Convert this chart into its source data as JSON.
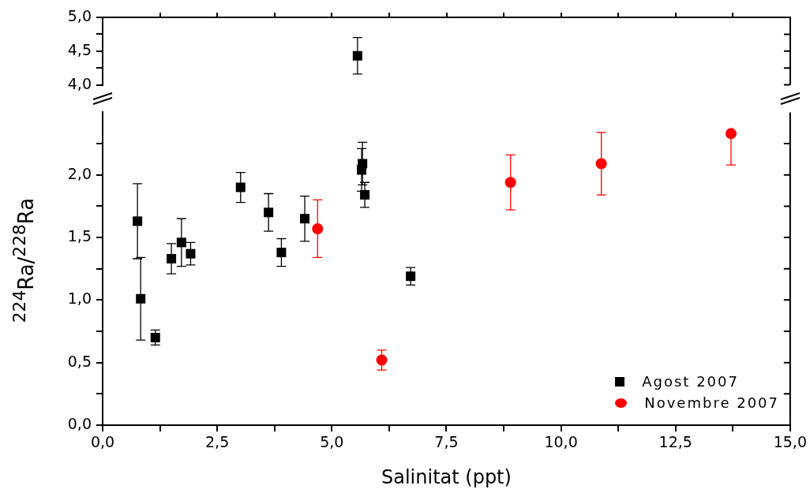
{
  "chart_data": [
    {
      "type": "scatter",
      "xlim": [
        0,
        15
      ],
      "xticks": [
        {
          "value": 1.25,
          "label": null
        },
        {
          "value": 2.5,
          "label": null
        },
        {
          "value": 3.75,
          "label": null
        },
        {
          "value": 5,
          "label": null
        },
        {
          "value": 6.25,
          "label": null
        },
        {
          "value": 7.5,
          "label": null
        },
        {
          "value": 8.75,
          "label": null
        },
        {
          "value": 10,
          "label": null
        },
        {
          "value": 11.25,
          "label": null
        },
        {
          "value": 12.5,
          "label": null
        },
        {
          "value": 13.75,
          "label": null
        }
      ],
      "ylim": [
        4.0,
        5.0
      ],
      "yticks": [
        {
          "value": 4.0,
          "label": "4,0"
        },
        {
          "value": 4.25,
          "label": null
        },
        {
          "value": 4.5,
          "label": "4,5"
        },
        {
          "value": 4.75,
          "label": null
        },
        {
          "value": 5.0,
          "label": "5,0"
        }
      ],
      "tick_labels": "y",
      "grid": false,
      "series": [
        {
          "color": "#000000",
          "marker": "square",
          "x": [
            5.56
          ],
          "values": [
            4.43
          ],
          "errors": [
            0.27
          ]
        }
      ]
    },
    {
      "type": "scatter",
      "xlabel": "Salinitat (ppt)",
      "ylabel": "$^{224}$Ra/$^{228}$Ra",
      "xlim": [
        0,
        15
      ],
      "xticks": [
        {
          "value": 0,
          "label": "0,0"
        },
        {
          "value": 1.25,
          "label": null
        },
        {
          "value": 2.5,
          "label": "2,5"
        },
        {
          "value": 3.75,
          "label": null
        },
        {
          "value": 5,
          "label": "5,0"
        },
        {
          "value": 6.25,
          "label": null
        },
        {
          "value": 7.5,
          "label": "7,5"
        },
        {
          "value": 8.75,
          "label": null
        },
        {
          "value": 10,
          "label": "10,0"
        },
        {
          "value": 11.25,
          "label": null
        },
        {
          "value": 12.5,
          "label": "12,5"
        },
        {
          "value": 13.75,
          "label": null
        },
        {
          "value": 15,
          "label": "15,0"
        }
      ],
      "ylim": [
        0,
        2.5
      ],
      "yticks": [
        {
          "value": 0,
          "label": "0,0"
        },
        {
          "value": 0.25,
          "label": null
        },
        {
          "value": 0.5,
          "label": "0,5"
        },
        {
          "value": 0.75,
          "label": null
        },
        {
          "value": 1.0,
          "label": "1,0"
        },
        {
          "value": 1.25,
          "label": null
        },
        {
          "value": 1.5,
          "label": "1,5"
        },
        {
          "value": 1.75,
          "label": null
        },
        {
          "value": 2.0,
          "label": "2,0"
        },
        {
          "value": 2.25,
          "label": null
        }
      ],
      "grid": false,
      "legend": "bottom right",
      "series": [
        {
          "name": "Agost 2007",
          "color": "#000000",
          "marker": "square",
          "x": [
            0.76,
            0.83,
            1.15,
            1.5,
            1.72,
            1.92,
            3.01,
            3.62,
            3.9,
            4.41,
            5.65,
            5.67,
            5.72,
            6.72
          ],
          "values": [
            1.63,
            1.01,
            0.7,
            1.33,
            1.46,
            1.37,
            1.9,
            1.7,
            1.38,
            1.65,
            2.04,
            2.09,
            1.84,
            1.19
          ],
          "errors": [
            0.3,
            0.33,
            0.06,
            0.12,
            0.19,
            0.09,
            0.12,
            0.15,
            0.11,
            0.18,
            0.17,
            0.17,
            0.1,
            0.07
          ]
        },
        {
          "name": "Novembre 2007",
          "color": "#ff0000",
          "marker": "circle",
          "x": [
            4.69,
            6.09,
            8.9,
            10.88,
            13.71
          ],
          "values": [
            1.57,
            0.52,
            1.94,
            2.09,
            2.33
          ],
          "errors": [
            0.23,
            0.08,
            0.22,
            0.25,
            [
              2.08,
              2.33
            ]
          ]
        }
      ]
    }
  ]
}
